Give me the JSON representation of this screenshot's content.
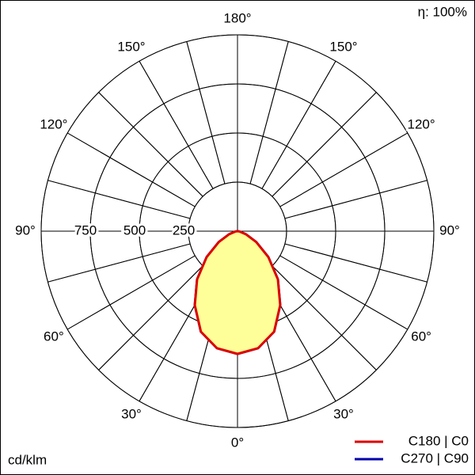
{
  "chart_data": {
    "type": "polar",
    "efficiency_label": "η: 100%",
    "unit_label": "cd/klm",
    "angles": [
      -90,
      -80,
      -70,
      -60,
      -50,
      -40,
      -30,
      -20,
      -10,
      0,
      10,
      20,
      30,
      40,
      50,
      60,
      70,
      80,
      90
    ],
    "series": [
      {
        "name": "C270 | C90",
        "color": "#0000aa",
        "values": [
          0,
          10,
          45,
          110,
          205,
          320,
          435,
          545,
          605,
          625,
          605,
          545,
          435,
          320,
          205,
          110,
          45,
          10,
          0
        ]
      },
      {
        "name": "C180 | C0",
        "color": "#dd0000",
        "fill": "#ffff99",
        "values": [
          0,
          10,
          45,
          110,
          205,
          320,
          435,
          545,
          605,
          625,
          605,
          545,
          435,
          320,
          205,
          110,
          45,
          10,
          0
        ]
      }
    ],
    "rlim": [
      0,
      1000
    ],
    "rticks": [
      250,
      500,
      750
    ],
    "angle_ticks": [
      {
        "value": 0,
        "label": "0°"
      },
      {
        "value": 30,
        "label": "30°"
      },
      {
        "value": 60,
        "label": "60°"
      },
      {
        "value": 90,
        "label": "90°"
      },
      {
        "value": 120,
        "label": "120°"
      },
      {
        "value": 150,
        "label": "150°"
      },
      {
        "value": 180,
        "label": "180°"
      }
    ],
    "angle_grid_step": 15
  }
}
